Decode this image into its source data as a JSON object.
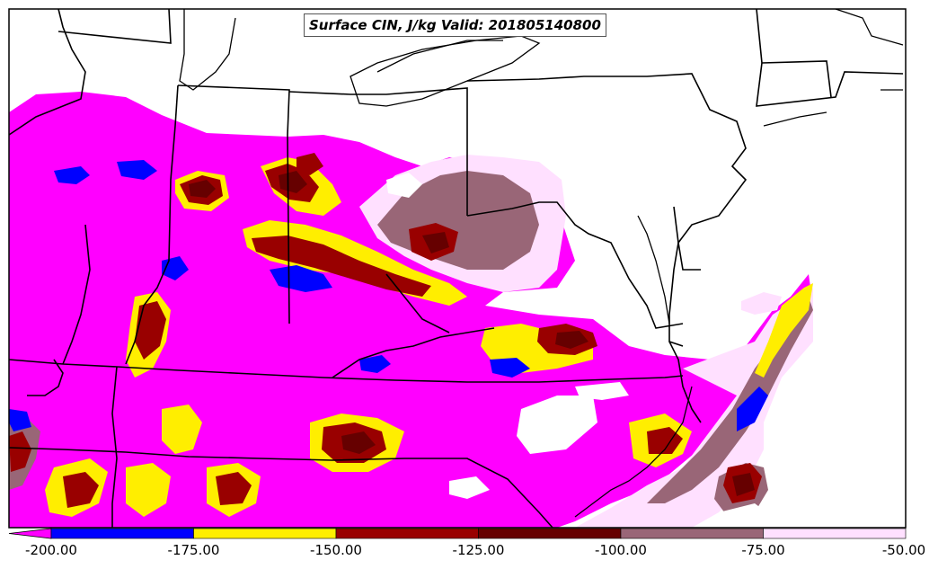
{
  "title": "Surface CIN, J/kg Valid: 201805140800",
  "colorbar": {
    "ticks": [
      "-200.00",
      "-175.00",
      "-150.00",
      "-125.00",
      "-100.00",
      "-75.00",
      "-50.00"
    ],
    "bins": [
      {
        "from": -200,
        "to": -175,
        "color": "#0000ff"
      },
      {
        "from": -175,
        "to": -150,
        "color": "#ffee00"
      },
      {
        "from": -150,
        "to": -125,
        "color": "#990000"
      },
      {
        "from": -125,
        "to": -100,
        "color": "#660000"
      },
      {
        "from": -100,
        "to": -75,
        "color": "#996677"
      },
      {
        "from": -75,
        "to": -50,
        "color": "#ffe0ff"
      }
    ],
    "under_color": "#ff00ff"
  },
  "colors": {
    "below_min": "#ff00ff",
    "blue": "#0000ff",
    "yellow": "#ffee00",
    "red": "#990000",
    "dark_red": "#660000",
    "mauve": "#996677",
    "light_pink": "#ffe0ff",
    "background": "#ffffff",
    "borders": "#000000"
  }
}
